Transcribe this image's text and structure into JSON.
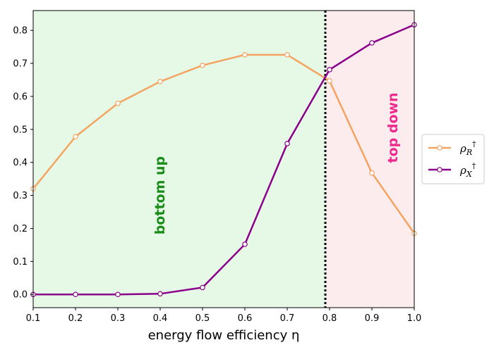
{
  "chart_data": {
    "type": "line",
    "x": [
      0.1,
      0.2,
      0.3,
      0.4,
      0.5,
      0.6,
      0.7,
      0.8,
      0.9,
      1.0
    ],
    "series": [
      {
        "name": "ρR†",
        "symbol": "ρ",
        "subscript": "R",
        "superscript": "†",
        "color": "#f4a460",
        "values": [
          0.32,
          0.478,
          0.579,
          0.645,
          0.694,
          0.726,
          0.726,
          0.647,
          0.368,
          0.185
        ]
      },
      {
        "name": "ρX†",
        "symbol": "ρ",
        "subscript": "X",
        "superscript": "†",
        "color": "#8b008b",
        "values": [
          0.0,
          0.0,
          0.0,
          0.002,
          0.021,
          0.152,
          0.457,
          0.681,
          0.762,
          0.817
        ]
      }
    ],
    "xlabel": "energy flow efficiency η",
    "ylabel": "",
    "xlim": [
      0.1,
      1.0
    ],
    "ylim": [
      -0.04,
      0.86
    ],
    "xticks": [
      0.1,
      0.2,
      0.3,
      0.4,
      0.5,
      0.6,
      0.7,
      0.8,
      0.9,
      1.0
    ],
    "yticks": [
      0.0,
      0.1,
      0.2,
      0.3,
      0.4,
      0.5,
      0.6,
      0.7,
      0.8
    ],
    "threshold_x": 0.79,
    "regions": [
      {
        "label": "bottom up",
        "x_from": 0.1,
        "x_to": 0.79,
        "fill": "#e6f9e6",
        "text_color": "#1a8c1a",
        "text_x": 0.4,
        "text_y": 0.3
      },
      {
        "label": "top down",
        "x_from": 0.79,
        "x_to": 1.0,
        "fill": "#fdecee",
        "text_color": "#f0288c",
        "text_x": 0.95,
        "text_y": 0.505
      }
    ],
    "grid": false,
    "legend_position": "outside right"
  }
}
